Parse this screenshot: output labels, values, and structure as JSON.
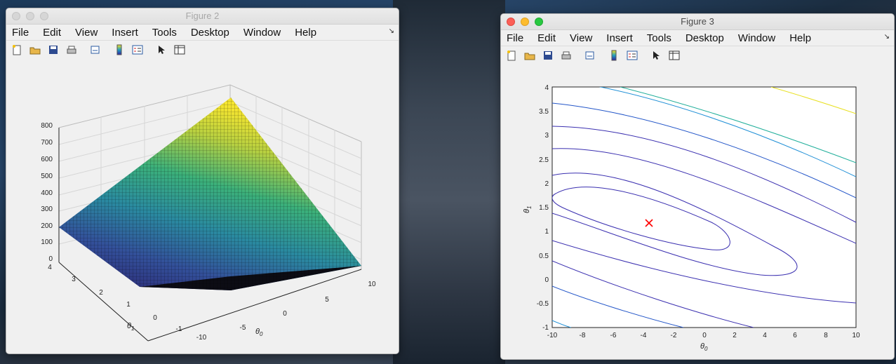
{
  "figure2": {
    "title": "Figure 2",
    "menu": [
      "File",
      "Edit",
      "View",
      "Insert",
      "Tools",
      "Desktop",
      "Window",
      "Help"
    ],
    "z_ticks": [
      "800",
      "700",
      "600",
      "500",
      "400",
      "300",
      "200",
      "100",
      "0"
    ],
    "y_ticks": [
      "4",
      "3",
      "2",
      "1",
      "0",
      "-1"
    ],
    "x_ticks": [
      "10",
      "5",
      "0",
      "-5",
      "-10"
    ],
    "xlabel": "θ",
    "xlabel_sub": "0",
    "ylabel": "θ",
    "ylabel_sub": "1"
  },
  "figure3": {
    "title": "Figure 3",
    "menu": [
      "File",
      "Edit",
      "View",
      "Insert",
      "Tools",
      "Desktop",
      "Window",
      "Help"
    ],
    "y_ticks": [
      "4",
      "3.5",
      "3",
      "2.5",
      "2",
      "1.5",
      "1",
      "0.5",
      "0",
      "-0.5",
      "-1"
    ],
    "x_ticks": [
      "-10",
      "-8",
      "-6",
      "-4",
      "-2",
      "0",
      "2",
      "4",
      "6",
      "8",
      "10"
    ],
    "xlabel": "θ",
    "xlabel_sub": "0",
    "ylabel": "θ",
    "ylabel_sub": "1",
    "marker_color": "#ff0000"
  },
  "toolbar_icons": [
    "new-figure-icon",
    "open-file-icon",
    "save-icon",
    "print-icon",
    "link-plot-icon",
    "colorbar-icon",
    "legend-icon",
    "pointer-icon",
    "property-editor-icon"
  ],
  "colors": {
    "contour_dark": "#3a2fb0",
    "contour_mid": "#1f8fd6",
    "contour_teal": "#1fae9a",
    "contour_yellow": "#e8e020"
  }
}
